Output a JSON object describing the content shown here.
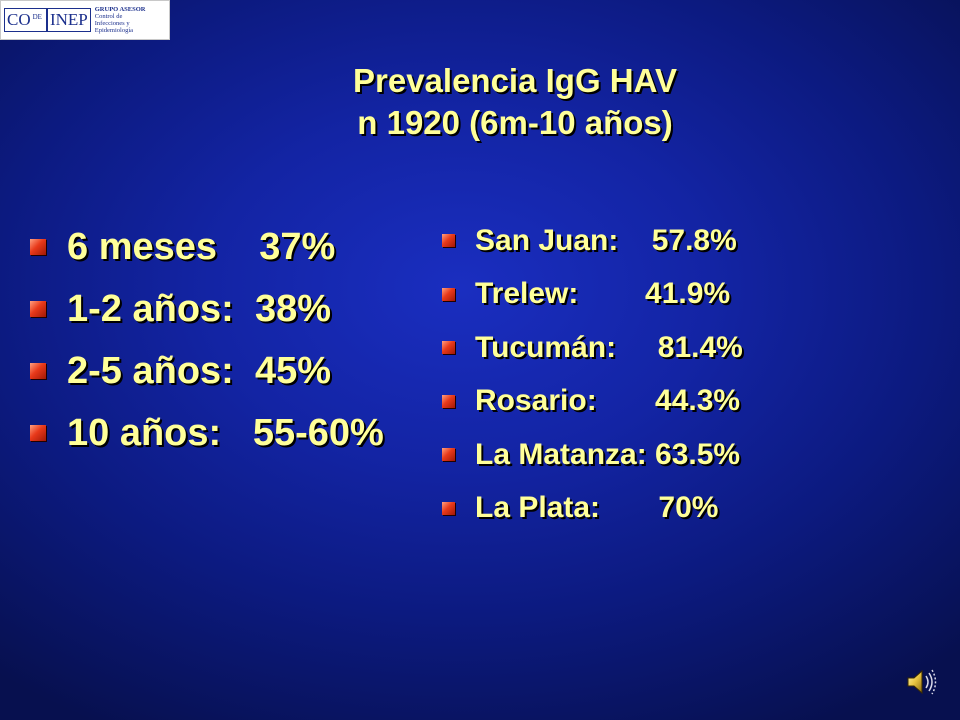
{
  "logo": {
    "co": "CO",
    "de": "DE",
    "inep": "INEP",
    "line1": "GRUPO ASESOR",
    "line2": "Control de",
    "line3": "Infecciones y",
    "line4": "Epidemiología"
  },
  "title": {
    "line1": "Prevalencia IgG HAV",
    "line2": "n 1920 (6m-10 años)"
  },
  "age_groups": [
    {
      "text": "6 meses    37%"
    },
    {
      "text": "1-2 años:  38%"
    },
    {
      "text": "2-5 años:  45%"
    },
    {
      "text": "10 años:   55-60%"
    }
  ],
  "cities": [
    {
      "text": "San Juan:    57.8%"
    },
    {
      "text": "Trelew:        41.9%"
    },
    {
      "text": "Tucumán:     81.4%"
    },
    {
      "text": "Rosario:       44.3%"
    },
    {
      "text": "La Matanza: 63.5%"
    },
    {
      "text": "La Plata:       70%"
    }
  ],
  "colors": {
    "text": "#ffff99",
    "bullet": "#e8391a",
    "background": "#1324a4"
  },
  "icons": {
    "bullet": "square-bullet-icon",
    "sound": "speaker-icon"
  }
}
